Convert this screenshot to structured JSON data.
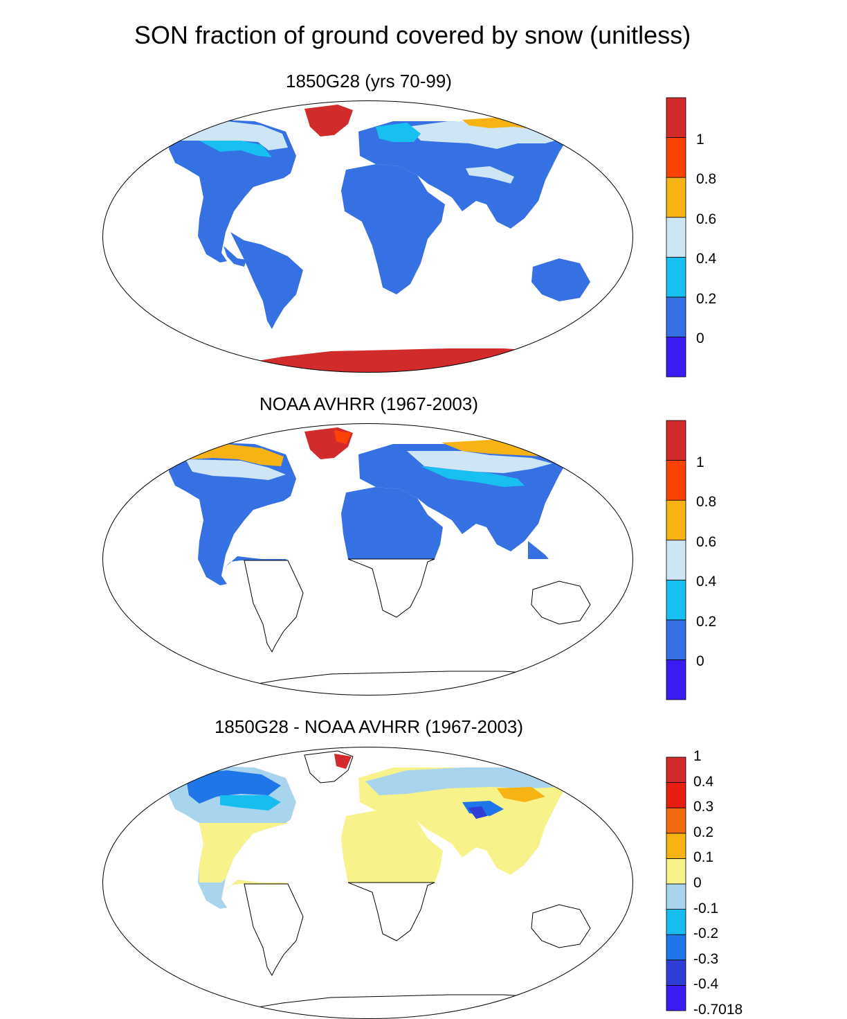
{
  "title": "SON fraction of ground covered by snow (unitless)",
  "panels": [
    {
      "title": "1850G28 (yrs 70-99)",
      "colorbar": {
        "colors": [
          "#3a1cf5",
          "#3571e3",
          "#18c0f2",
          "#cde5f5",
          "#f7b313",
          "#fb4305",
          "#d22b2b"
        ],
        "labels": [
          "0",
          "0.2",
          "0.4",
          "0.6",
          "0.8",
          "1"
        ]
      }
    },
    {
      "title": "NOAA AVHRR (1967-2003)",
      "colorbar": {
        "colors": [
          "#3a1cf5",
          "#3571e3",
          "#18c0f2",
          "#cde5f5",
          "#f7b313",
          "#fb4305",
          "#d22b2b"
        ],
        "labels": [
          "0",
          "0.2",
          "0.4",
          "0.6",
          "0.8",
          "1"
        ]
      }
    },
    {
      "title": "1850G28 - NOAA AVHRR (1967-2003)",
      "colorbar": {
        "colors": [
          "#3a1cf5",
          "#2e3fd8",
          "#1e76e8",
          "#18bdf0",
          "#a8d4ee",
          "#f8f28a",
          "#f7b313",
          "#f26a10",
          "#e81e12",
          "#d22b2b"
        ],
        "labels": [
          "-0.7018",
          "-0.4",
          "-0.3",
          "-0.2",
          "-0.1",
          "0",
          "0.1",
          "0.2",
          "0.3",
          "0.4",
          "1"
        ]
      }
    }
  ]
}
